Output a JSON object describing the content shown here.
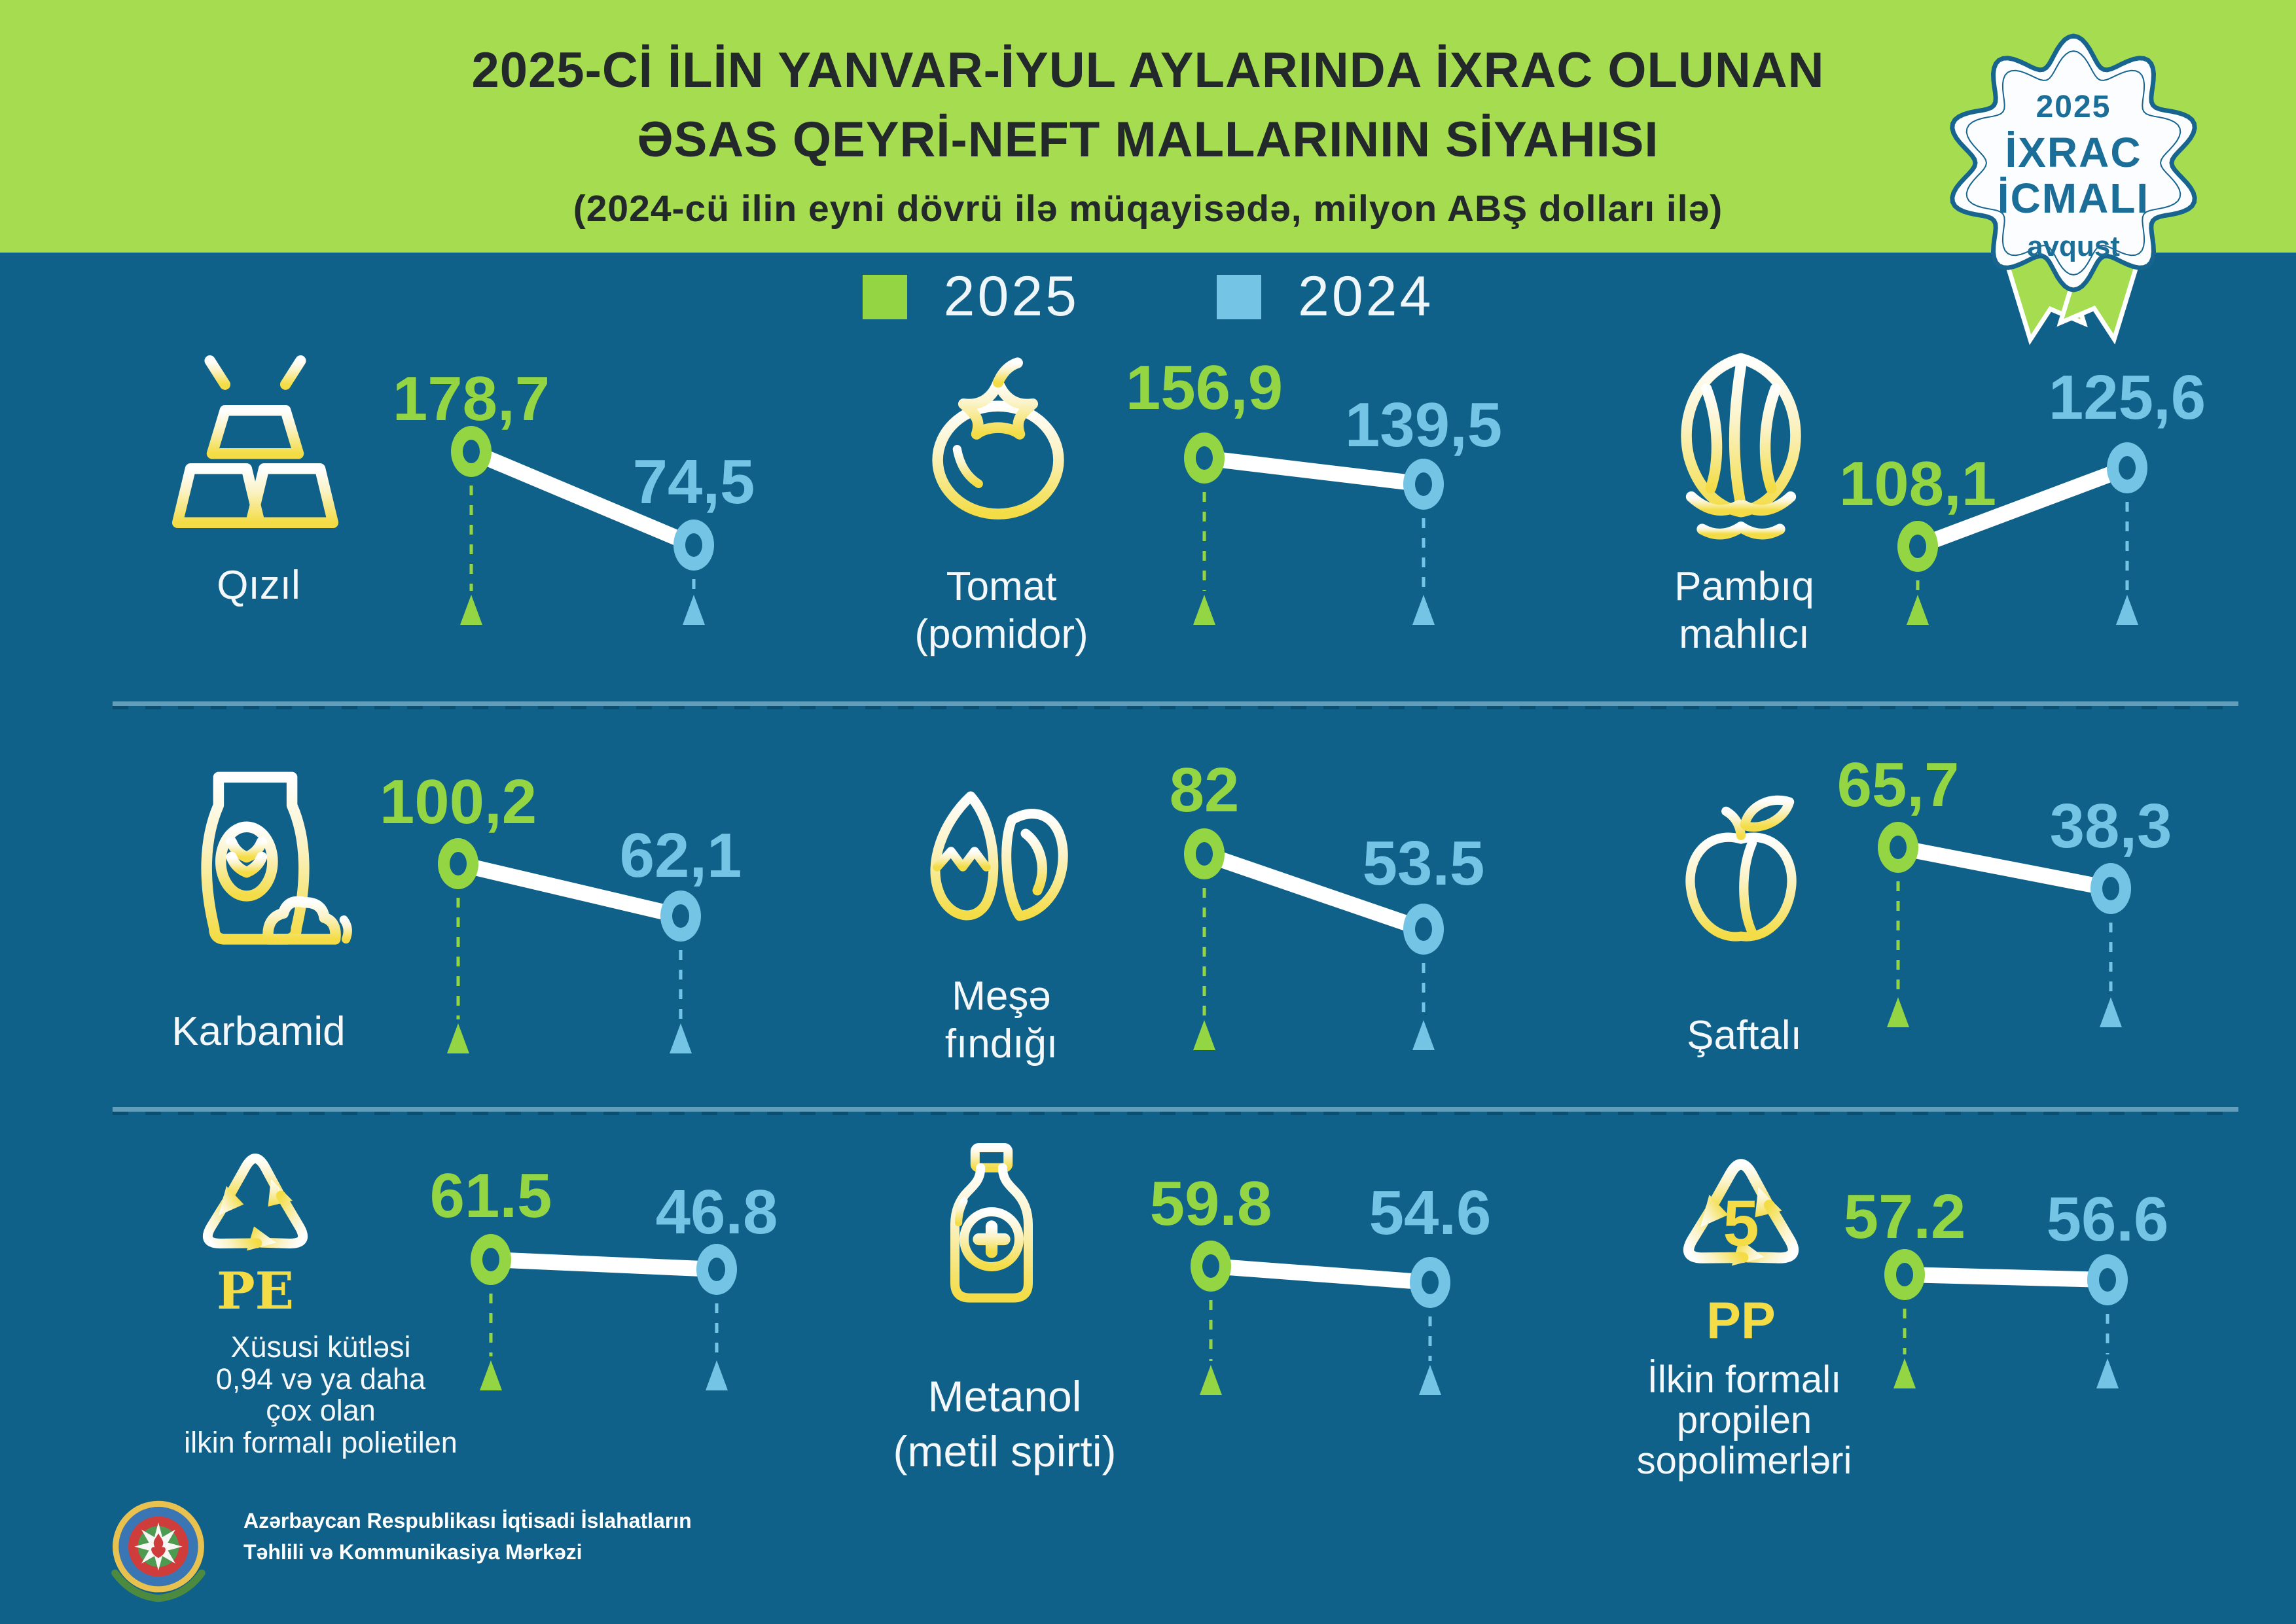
{
  "header": {
    "title_line1": "2025-Cİ İLİN YANVAR-İYUL AYLARINDA İXRAC OLUNAN",
    "title_line2": "ƏSAS QEYRİ-NEFT MALLARININ SİYAHISI",
    "title_line3": "(2024-cü ilin eyni dövrü ilə müqayisədə, milyon ABŞ dolları ilə)",
    "badge": {
      "year": "2025",
      "line1": "İXRAC",
      "line2": "İCMALI",
      "line3": "avqust"
    }
  },
  "legend": [
    {
      "label": "2025",
      "color": "#93D542"
    },
    {
      "label": "2024",
      "color": "#74C5E5"
    }
  ],
  "colors": {
    "background": "#0F6189",
    "header_green": "#A6DC4F",
    "accent_green": "#93D542",
    "accent_blue": "#74C5E5",
    "icon_yellow": "#F3DC45",
    "title_text": "#23282B",
    "badge_text": "#1B6E98",
    "white": "#FFFFFF"
  },
  "items": [
    {
      "icon": "gold-bars-icon",
      "label": "Qızıl",
      "v2025": "178,7",
      "v2024": "74,5"
    },
    {
      "icon": "tomato-icon",
      "label": "Tomat\n(pomidor)",
      "v2025": "156,9",
      "v2024": "139,5"
    },
    {
      "icon": "cotton-icon",
      "label": "Pambıq\nmahlıcı",
      "v2025": "108,1",
      "v2024": "125,6"
    },
    {
      "icon": "fertilizer-bag-icon",
      "label": "Karbamid",
      "v2025": "100,2",
      "v2024": "62,1"
    },
    {
      "icon": "hazelnut-icon",
      "label": "Meşə\nfındığı",
      "v2025": "82",
      "v2024": "53.5"
    },
    {
      "icon": "peach-icon",
      "label": "Şaftalı",
      "v2025": "65,7",
      "v2024": "38,3"
    },
    {
      "icon": "recycle-pe-icon",
      "icon_text": "PE",
      "label": "Xüsusi kütləsi\n0,94 və ya daha\nçox olan\nilkin formalı polietilen",
      "v2025": "61.5",
      "v2024": "46.8"
    },
    {
      "icon": "methanol-bottle-icon",
      "label": "Metanol\n(metil spirti)",
      "v2025": "59.8",
      "v2024": "54.6"
    },
    {
      "icon": "recycle-pp-icon",
      "icon_text": "PP",
      "icon_number": "5",
      "label": "İlkin formalı\npropilen\nsopolimerləri",
      "v2025": "57.2",
      "v2024": "56.6"
    }
  ],
  "footer": {
    "line1": "Azərbaycan Respublikası İqtisadi İslahatların",
    "line2": "Təhlili və Kommunikasiya Mərkəzi"
  },
  "chart_data": {
    "type": "line",
    "title": "2025-ci ilin yanvar-iyul aylarında ixrac olunan əsas qeyri-neft mallarının siyahısı",
    "subtitle": "2024-cü ilin eyni dövrü ilə müqayisədə, milyon ABŞ dolları ilə",
    "unit": "milyon ABŞ dolları",
    "legend_position": "top",
    "categories": [
      "Qızıl",
      "Tomat (pomidor)",
      "Pambıq mahlıcı",
      "Karbamid",
      "Meşə fındığı",
      "Şaftalı",
      "Xüsusi kütləsi 0,94 və ya daha çox olan ilkin formalı polietilen",
      "Metanol (metil spirti)",
      "İlkin formalı propilen sopolimerləri"
    ],
    "series": [
      {
        "name": "2025",
        "color": "#93D542",
        "values": [
          178.7,
          156.9,
          108.1,
          100.2,
          82,
          65.7,
          61.5,
          59.8,
          57.2
        ]
      },
      {
        "name": "2024",
        "color": "#74C5E5",
        "values": [
          74.5,
          139.5,
          125.6,
          62.1,
          53.5,
          38.3,
          46.8,
          54.6,
          56.6
        ]
      }
    ]
  }
}
